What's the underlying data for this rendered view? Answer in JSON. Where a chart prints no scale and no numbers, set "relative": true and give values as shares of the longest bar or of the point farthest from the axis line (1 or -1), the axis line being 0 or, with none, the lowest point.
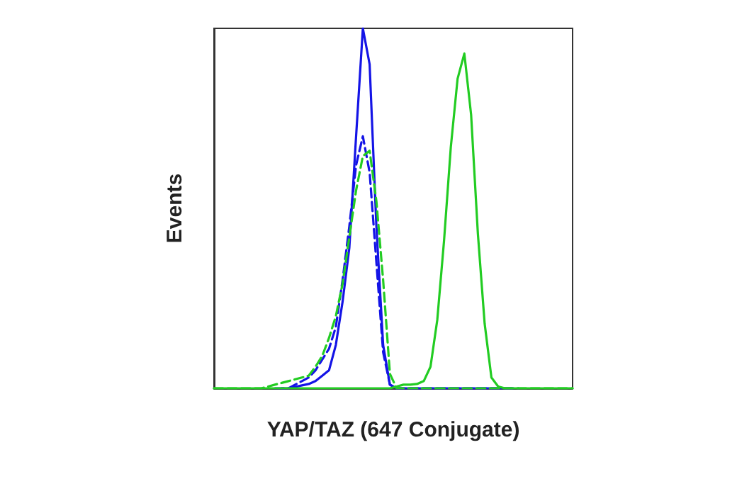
{
  "chart_data": {
    "type": "line",
    "xlabel": "YAP/TAZ (647 Conjugate)",
    "ylabel": "Events",
    "relative": true,
    "grid": false,
    "categories": [
      null,
      null,
      null,
      null,
      null,
      null,
      null,
      null,
      null,
      null,
      null,
      null,
      null,
      null,
      null,
      null,
      null,
      null,
      null,
      null,
      null,
      null,
      null,
      null,
      null,
      null,
      null,
      null,
      null,
      null,
      null,
      null,
      null,
      null,
      null,
      null,
      null,
      null,
      null,
      null,
      null,
      null,
      null,
      null,
      null,
      null,
      null,
      null,
      null,
      null,
      null,
      null,
      null,
      null
    ],
    "series": [
      {
        "color": "#1414e6",
        "line_style": "solid",
        "values": [
          null,
          null,
          null,
          null,
          null,
          null,
          null,
          null,
          null,
          null,
          0,
          0,
          0.004,
          0.008,
          0.012,
          0.02,
          0.035,
          0.05,
          0.12,
          0.24,
          0.39,
          0.7,
          1,
          0.9,
          0.45,
          0.12,
          0.01,
          0,
          0,
          0,
          0,
          0,
          0,
          0,
          0,
          0,
          0,
          0,
          0,
          0,
          0,
          0,
          0,
          0,
          0,
          null,
          null,
          null,
          null,
          null,
          null,
          null,
          null,
          null
        ]
      },
      {
        "color": "#1414e6",
        "line_style": "dashed",
        "values": [
          null,
          null,
          null,
          null,
          null,
          null,
          null,
          null,
          null,
          0,
          0,
          0,
          0.01,
          0.02,
          0.03,
          0.05,
          0.08,
          0.11,
          0.17,
          0.3,
          0.45,
          0.62,
          0.7,
          0.6,
          0.35,
          0.1,
          0.01,
          0,
          0,
          0,
          0,
          0,
          0,
          0,
          0,
          0,
          0,
          0,
          0,
          0,
          0,
          0,
          0,
          0,
          0,
          0,
          null,
          null,
          null,
          null,
          null,
          null,
          null,
          null
        ]
      },
      {
        "color": "#22cc22",
        "line_style": "dashed",
        "values": [
          0,
          0,
          0,
          0,
          0,
          0,
          0,
          0,
          0.005,
          0.01,
          0.015,
          0.02,
          0.025,
          0.03,
          0.035,
          0.06,
          0.09,
          0.14,
          0.2,
          0.29,
          0.42,
          0.55,
          0.645,
          0.66,
          0.52,
          0.3,
          0.04,
          0,
          0,
          0,
          0,
          0,
          0,
          0,
          0,
          0,
          0,
          0,
          0,
          0,
          0,
          0,
          0,
          0,
          0,
          0,
          0,
          0,
          0,
          0,
          0,
          0,
          0,
          0
        ]
      },
      {
        "color": "#22cc22",
        "line_style": "solid",
        "values": [
          0,
          0,
          0,
          0,
          0,
          0,
          0,
          0,
          0,
          0,
          0,
          0,
          0,
          0,
          0,
          0,
          0,
          0,
          0,
          0,
          0,
          0,
          0,
          0,
          0,
          0,
          0,
          0.005,
          0.01,
          0.01,
          0.012,
          0.02,
          0.06,
          0.19,
          0.41,
          0.67,
          0.86,
          0.93,
          0.76,
          0.43,
          0.18,
          0.03,
          0.005,
          0,
          0,
          0,
          0,
          0,
          0,
          0,
          0,
          0,
          0,
          0
        ]
      }
    ]
  }
}
